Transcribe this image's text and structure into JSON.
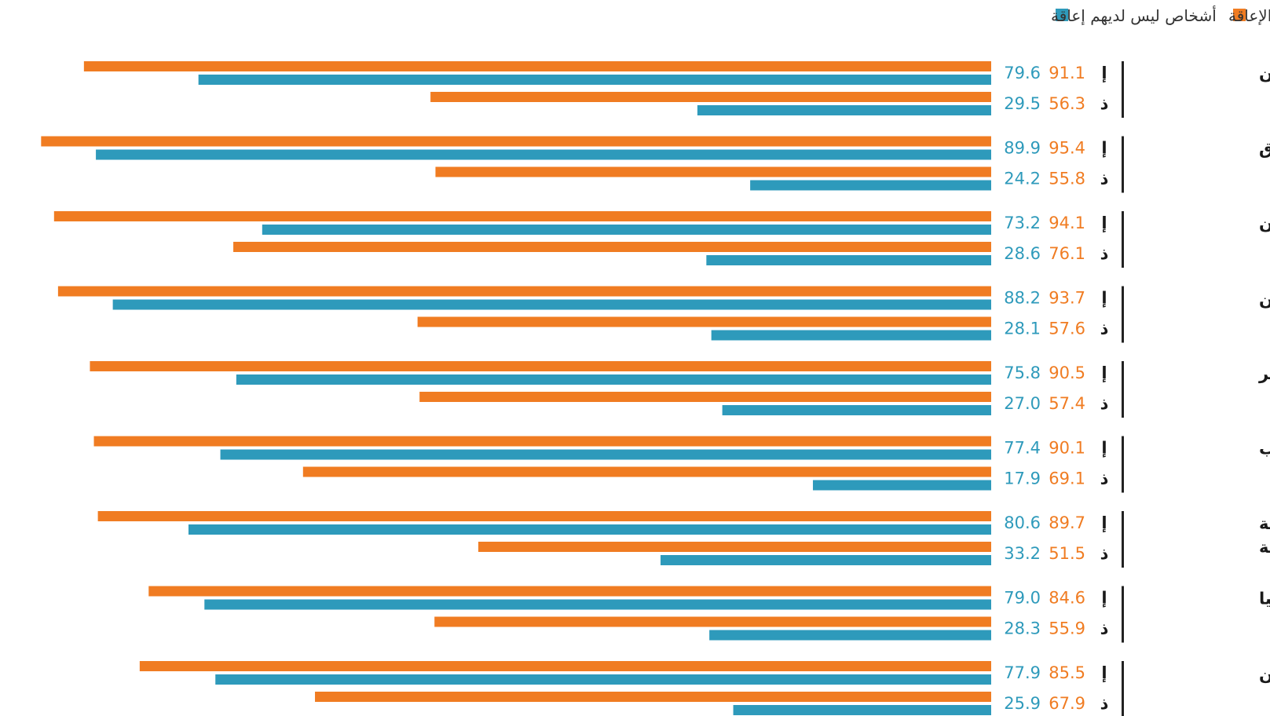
{
  "legend": {
    "series_1_label": "الأشخاص ذوو الإعاقة",
    "series_2_label": "أشخاص ليس لديهم إعاقة"
  },
  "colors": {
    "series_1": "#f07c22",
    "series_2": "#2e9abb",
    "separator": "#222222"
  },
  "chart_data": {
    "type": "bar",
    "orientation": "horizontal",
    "direction": "right-to-left",
    "xlim": [
      0,
      100
    ],
    "grid": false,
    "legend_placement": "top-right",
    "series": [
      {
        "name": "الأشخاص ذوو الإعاقة",
        "color": "#f07c22"
      },
      {
        "name": "أشخاص ليس لديهم إعاقة",
        "color": "#2e9abb"
      }
    ],
    "groups": [
      {
        "country": [
          "الأردن"
        ],
        "rows": [
          {
            "letter": "إ",
            "values": [
              91.1,
              79.6
            ]
          },
          {
            "letter": "ذ",
            "values": [
              56.3,
              29.5
            ]
          }
        ]
      },
      {
        "country": [
          "العراق"
        ],
        "rows": [
          {
            "letter": "إ",
            "values": [
              95.4,
              89.9
            ]
          },
          {
            "letter": "ذ",
            "values": [
              55.8,
              24.2
            ]
          }
        ]
      },
      {
        "country": [
          "عمان"
        ],
        "rows": [
          {
            "letter": "إ",
            "values": [
              94.1,
              73.2
            ]
          },
          {
            "letter": "ذ",
            "values": [
              76.1,
              28.6
            ]
          }
        ]
      },
      {
        "country": [
          "فلسطين"
        ],
        "rows": [
          {
            "letter": "إ",
            "values": [
              93.7,
              88.2
            ]
          },
          {
            "letter": "ذ",
            "values": [
              57.6,
              28.1
            ]
          }
        ]
      },
      {
        "country": [
          "مصر"
        ],
        "rows": [
          {
            "letter": "إ",
            "values": [
              90.5,
              75.8
            ]
          },
          {
            "letter": "ذ",
            "values": [
              57.4,
              27.0
            ]
          }
        ]
      },
      {
        "country": [
          "المغرب"
        ],
        "rows": [
          {
            "letter": "إ",
            "values": [
              90.1,
              77.4
            ]
          },
          {
            "letter": "ذ",
            "values": [
              69.1,
              17.9
            ]
          }
        ]
      },
      {
        "country": [
          "المملكة العربية",
          "السعودية"
        ],
        "rows": [
          {
            "letter": "إ",
            "values": [
              89.7,
              80.6
            ]
          },
          {
            "letter": "ذ",
            "values": [
              51.5,
              33.2
            ]
          }
        ]
      },
      {
        "country": [
          "موريتانيا"
        ],
        "rows": [
          {
            "letter": "إ",
            "values": [
              84.6,
              79.0
            ]
          },
          {
            "letter": "ذ",
            "values": [
              55.9,
              28.3
            ]
          }
        ]
      },
      {
        "country": [
          "اليمن"
        ],
        "rows": [
          {
            "letter": "إ",
            "values": [
              85.5,
              77.9
            ]
          },
          {
            "letter": "ذ",
            "values": [
              67.9,
              25.9
            ]
          }
        ]
      }
    ]
  }
}
